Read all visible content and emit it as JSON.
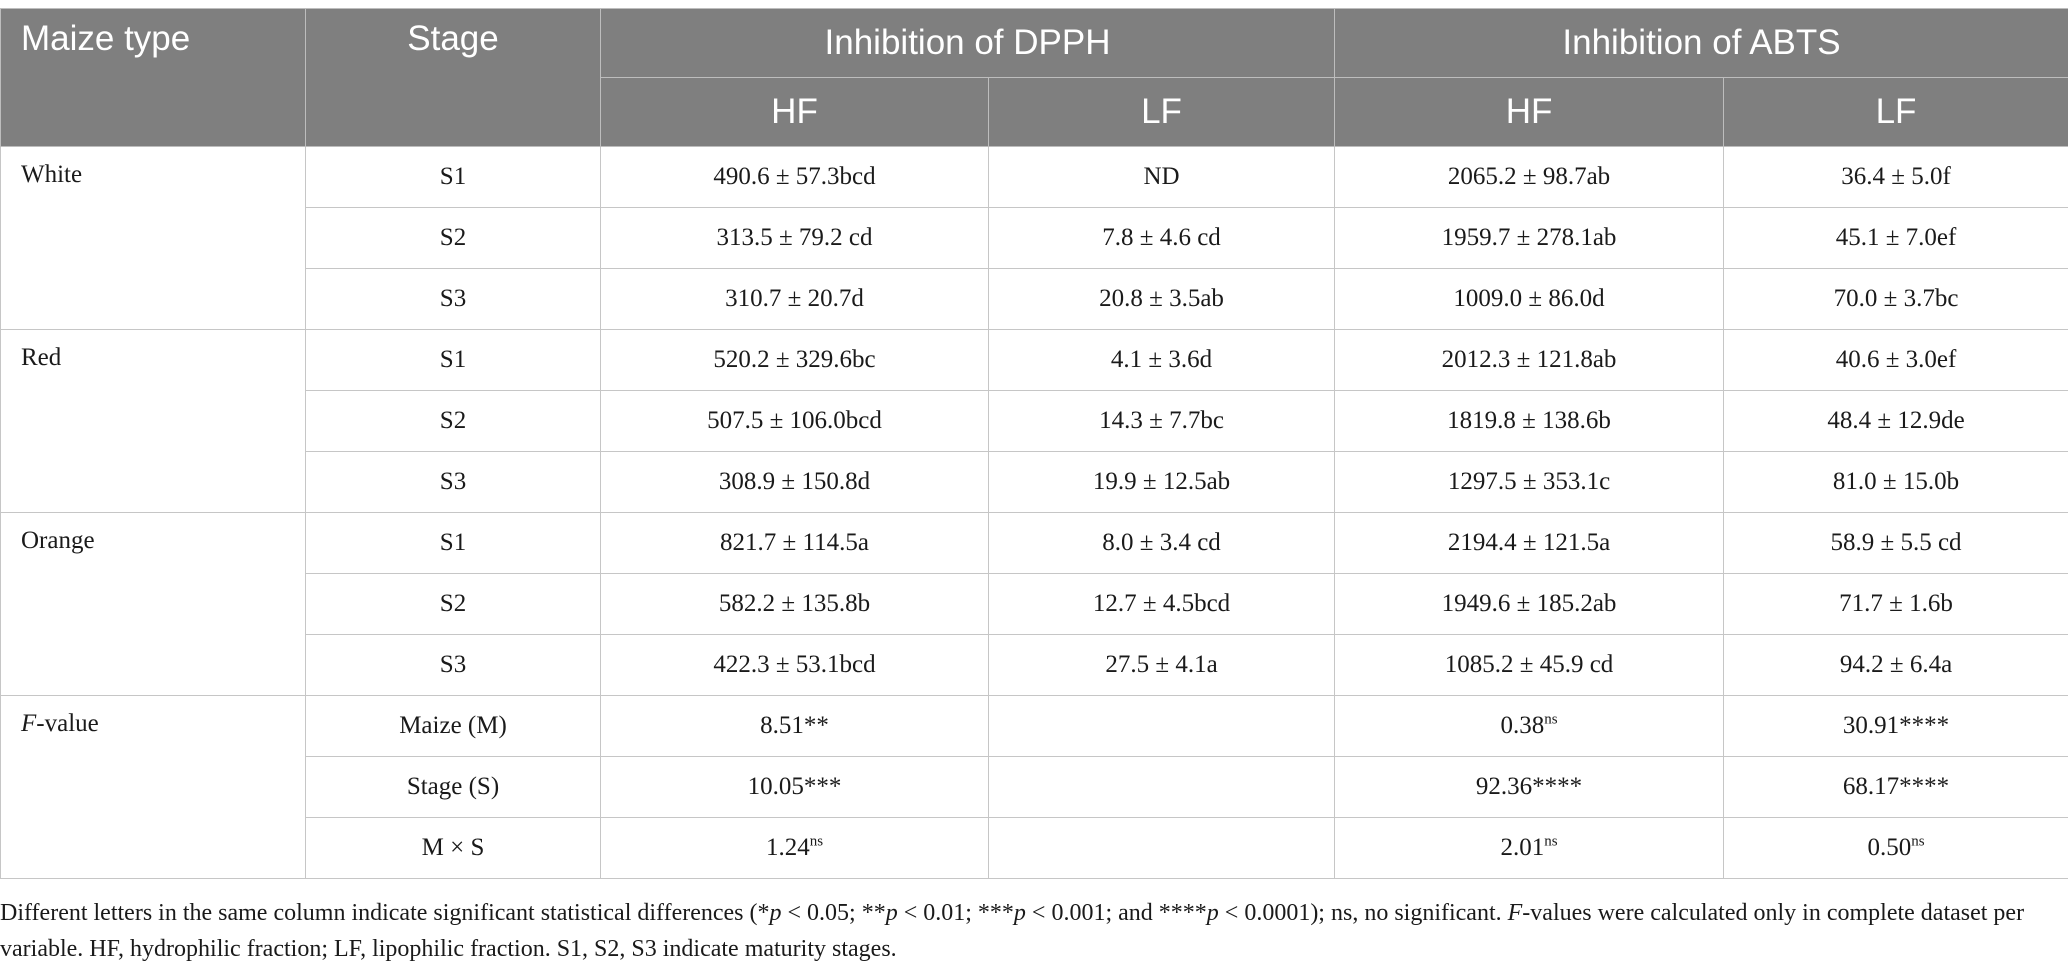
{
  "table": {
    "headers": {
      "maize_type": "Maize type",
      "stage": "Stage",
      "dpph": "Inhibition of DPPH",
      "abts": "Inhibition of ABTS",
      "hf": "HF",
      "lf": "LF"
    },
    "groups": [
      {
        "label": "White",
        "rows": [
          {
            "stage": "S1",
            "dpph_hf": "490.6 ± 57.3bcd",
            "dpph_lf": "ND",
            "abts_hf": "2065.2 ± 98.7ab",
            "abts_lf": "36.4 ± 5.0f"
          },
          {
            "stage": "S2",
            "dpph_hf": "313.5 ± 79.2 cd",
            "dpph_lf": "7.8 ± 4.6 cd",
            "abts_hf": "1959.7 ± 278.1ab",
            "abts_lf": "45.1 ± 7.0ef"
          },
          {
            "stage": "S3",
            "dpph_hf": "310.7 ± 20.7d",
            "dpph_lf": "20.8 ± 3.5ab",
            "abts_hf": "1009.0 ± 86.0d",
            "abts_lf": "70.0 ± 3.7bc"
          }
        ]
      },
      {
        "label": "Red",
        "rows": [
          {
            "stage": "S1",
            "dpph_hf": "520.2 ± 329.6bc",
            "dpph_lf": "4.1 ± 3.6d",
            "abts_hf": "2012.3 ± 121.8ab",
            "abts_lf": "40.6 ± 3.0ef"
          },
          {
            "stage": "S2",
            "dpph_hf": "507.5 ± 106.0bcd",
            "dpph_lf": "14.3 ± 7.7bc",
            "abts_hf": "1819.8 ± 138.6b",
            "abts_lf": "48.4 ± 12.9de"
          },
          {
            "stage": "S3",
            "dpph_hf": "308.9 ± 150.8d",
            "dpph_lf": "19.9 ± 12.5ab",
            "abts_hf": "1297.5 ± 353.1c",
            "abts_lf": "81.0 ± 15.0b"
          }
        ]
      },
      {
        "label": "Orange",
        "rows": [
          {
            "stage": "S1",
            "dpph_hf": "821.7 ± 114.5a",
            "dpph_lf": "8.0 ± 3.4 cd",
            "abts_hf": "2194.4 ± 121.5a",
            "abts_lf": "58.9 ± 5.5 cd"
          },
          {
            "stage": "S2",
            "dpph_hf": "582.2 ± 135.8b",
            "dpph_lf": "12.7 ± 4.5bcd",
            "abts_hf": "1949.6 ± 185.2ab",
            "abts_lf": "71.7 ± 1.6b"
          },
          {
            "stage": "S3",
            "dpph_hf": "422.3 ± 53.1bcd",
            "dpph_lf": "27.5 ± 4.1a",
            "abts_hf": "1085.2 ± 45.9 cd",
            "abts_lf": "94.2 ± 6.4a"
          }
        ]
      }
    ],
    "fvalue": {
      "label_italic": "F",
      "label_rest": "-value",
      "rows": [
        {
          "factor": "Maize (M)",
          "dpph_hf": "8.51**",
          "dpph_hf_sup": "",
          "dpph_lf": "",
          "abts_hf": "0.38",
          "abts_hf_sup": "ns",
          "abts_lf": "30.91****",
          "abts_lf_sup": ""
        },
        {
          "factor": "Stage (S)",
          "dpph_hf": "10.05***",
          "dpph_hf_sup": "",
          "dpph_lf": "",
          "abts_hf": "92.36****",
          "abts_hf_sup": "",
          "abts_lf": "68.17****",
          "abts_lf_sup": ""
        },
        {
          "factor": "M × S",
          "dpph_hf": "1.24",
          "dpph_hf_sup": "ns",
          "dpph_lf": "",
          "abts_hf": "2.01",
          "abts_hf_sup": "ns",
          "abts_lf": "0.50",
          "abts_lf_sup": "ns"
        }
      ]
    }
  },
  "footnote": {
    "p1": "Different letters in the same column indicate significant statistical differences (*",
    "p": "p",
    "p2": " < 0.05; **",
    "p3": " < 0.01; ***",
    "p4": " < 0.001; and ****",
    "p5": " < 0.0001); ns, no significant. ",
    "f": "F",
    "p6": "-values were calculated only in complete dataset per variable. HF, hydrophilic fraction; LF, lipophilic fraction. S1, S2, S3 indicate maturity stages."
  }
}
